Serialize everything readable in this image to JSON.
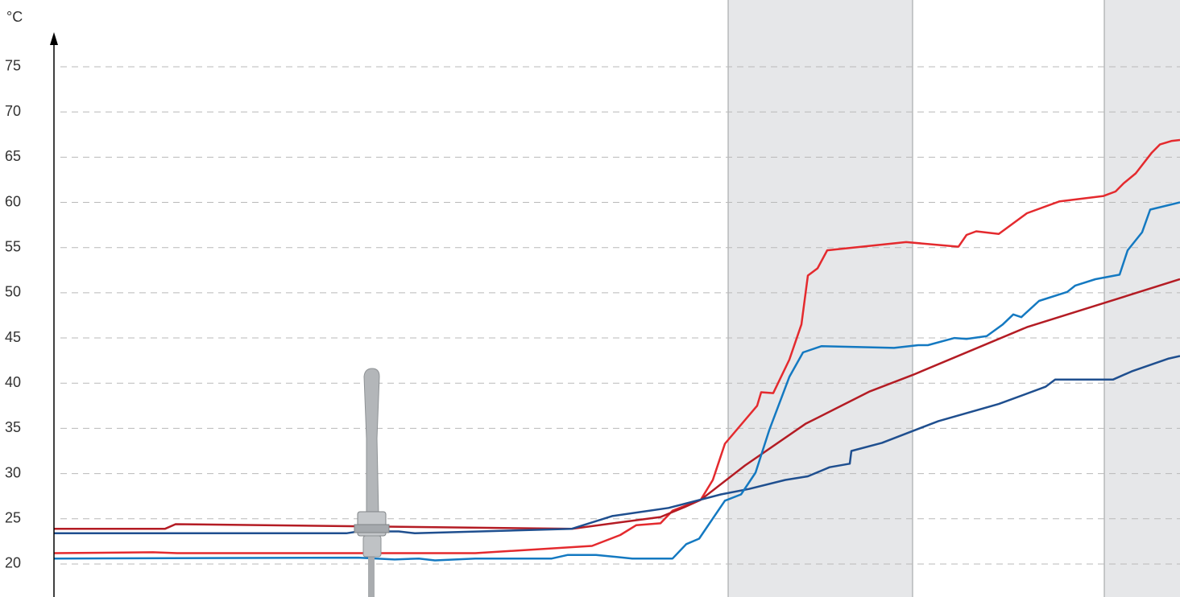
{
  "chart_data": {
    "type": "line",
    "y_label": "°C",
    "xlim": [
      0,
      1398
    ],
    "ylim": [
      16.35,
      79
    ],
    "yticks": [
      20,
      25,
      30,
      35,
      40,
      45,
      50,
      55,
      60,
      65,
      70,
      75
    ],
    "grid": true,
    "bands": [
      [
        837,
        1066
      ],
      [
        1304,
        1398
      ]
    ],
    "band_color": "#e6e7e9",
    "series": [
      {
        "color": "#e42a2e",
        "x": [
          0,
          123,
          153,
          523,
          668,
          703,
          723,
          753,
          768,
          803,
          818,
          833,
          873,
          878,
          893,
          913,
          928,
          936,
          948,
          960,
          1058,
          1123,
          1133,
          1145,
          1173,
          1208,
          1248,
          1303,
          1318,
          1328,
          1343,
          1363,
          1373,
          1388,
          1398
        ],
        "values": [
          21.2,
          21.3,
          21.2,
          21.2,
          22.0,
          23.2,
          24.3,
          24.5,
          25.9,
          27.1,
          29.3,
          33.3,
          37.5,
          39.0,
          38.9,
          42.6,
          46.5,
          51.9,
          52.7,
          54.7,
          55.6,
          55.1,
          56.4,
          56.8,
          56.5,
          58.8,
          60.1,
          60.7,
          61.2,
          62.1,
          63.2,
          65.5,
          66.4,
          66.8,
          66.9
        ]
      },
      {
        "color": "#b41c24",
        "x": [
          0,
          138,
          151,
          643,
          753,
          783,
          803,
          858,
          933,
          1013,
          1066,
          1208,
          1398
        ],
        "values": [
          23.9,
          23.9,
          24.4,
          23.9,
          25.2,
          26.3,
          27.1,
          30.9,
          35.5,
          39.1,
          40.9,
          46.2,
          51.5
        ]
      },
      {
        "color": "#1f4f8f",
        "x": [
          0,
          363,
          378,
          428,
          448,
          643,
          693,
          763,
          828,
          863,
          908,
          936,
          963,
          988,
          990,
          1028,
          1098,
          1173,
          1231,
          1243,
          1315,
          1338,
          1383,
          1398
        ],
        "values": [
          23.4,
          23.4,
          23.6,
          23.6,
          23.4,
          23.9,
          25.3,
          26.2,
          27.7,
          28.3,
          29.3,
          29.7,
          30.7,
          31.1,
          32.5,
          33.4,
          35.8,
          37.7,
          39.6,
          40.4,
          40.4,
          41.3,
          42.7,
          43.0
        ]
      },
      {
        "color": "#1479c1",
        "x": [
          0,
          378,
          423,
          453,
          473,
          523,
          618,
          638,
          673,
          718,
          768,
          785,
          801,
          833,
          853,
          871,
          888,
          913,
          930,
          953,
          1043,
          1073,
          1085,
          1118,
          1133,
          1158,
          1178,
          1191,
          1201,
          1223,
          1258,
          1268,
          1293,
          1323,
          1333,
          1351,
          1361,
          1398
        ],
        "values": [
          20.6,
          20.7,
          20.5,
          20.6,
          20.4,
          20.6,
          20.6,
          21.0,
          21.0,
          20.6,
          20.6,
          22.2,
          22.8,
          27.0,
          27.7,
          30.1,
          34.8,
          40.7,
          43.4,
          44.1,
          43.9,
          44.2,
          44.2,
          45.0,
          44.9,
          45.2,
          46.5,
          47.6,
          47.3,
          49.1,
          50.1,
          50.8,
          51.5,
          52.0,
          54.7,
          56.7,
          59.2,
          60.0
        ]
      }
    ]
  }
}
